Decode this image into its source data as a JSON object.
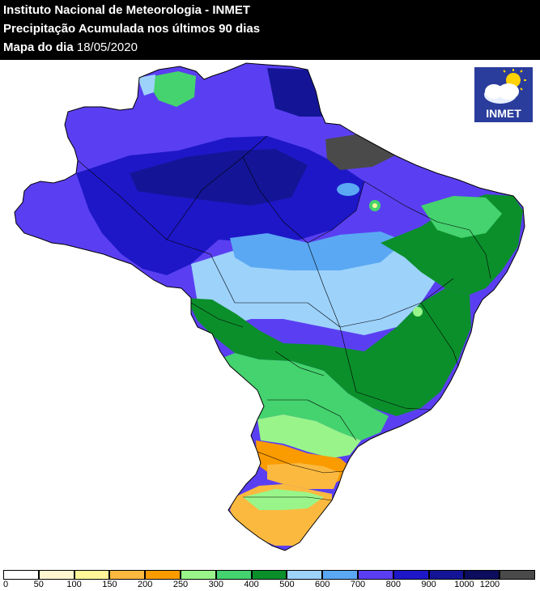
{
  "header": {
    "line1": "Instituto Nacional de Meteorologia - INMET",
    "line2": "Precipitação Acumulada nos últimos 90 dias",
    "line3_label": "Mapa do dia",
    "line3_date": "18/05/2020"
  },
  "logo": {
    "text": "INMET",
    "icon": "sun-cloud-icon"
  },
  "legend": {
    "labels": [
      "0",
      "50",
      "100",
      "150",
      "200",
      "250",
      "300",
      "400",
      "500",
      "600",
      "700",
      "800",
      "900",
      "1000",
      "1200"
    ],
    "colors": [
      "#ffffff",
      "#fff6d0",
      "#fff799",
      "#fbb93f",
      "#fa9b00",
      "#99f589",
      "#44d36e",
      "#0b8f2b",
      "#9dd2fb",
      "#5aa8f3",
      "#5a3ff2",
      "#1e17c8",
      "#141596",
      "#0c0d5c",
      "#4a4a4a"
    ]
  },
  "map": {
    "regions": [
      {
        "name": "north-amazon-west",
        "color": "#5a3ff2"
      },
      {
        "name": "amazon-core",
        "color": "#1e17c8"
      },
      {
        "name": "amazon-deep",
        "color": "#141596"
      },
      {
        "name": "northeast-coast-dark",
        "color": "#4a4a4a"
      },
      {
        "name": "central-light-blue",
        "color": "#9dd2fb"
      },
      {
        "name": "central-mid-blue",
        "color": "#5aa8f3"
      },
      {
        "name": "center-west-green",
        "color": "#0b8f2b"
      },
      {
        "name": "southeast-green",
        "color": "#44d36e"
      },
      {
        "name": "south-light-green",
        "color": "#99f589"
      },
      {
        "name": "south-orange",
        "color": "#fa9b00"
      },
      {
        "name": "south-yellow-orange",
        "color": "#fbb93f"
      }
    ]
  }
}
